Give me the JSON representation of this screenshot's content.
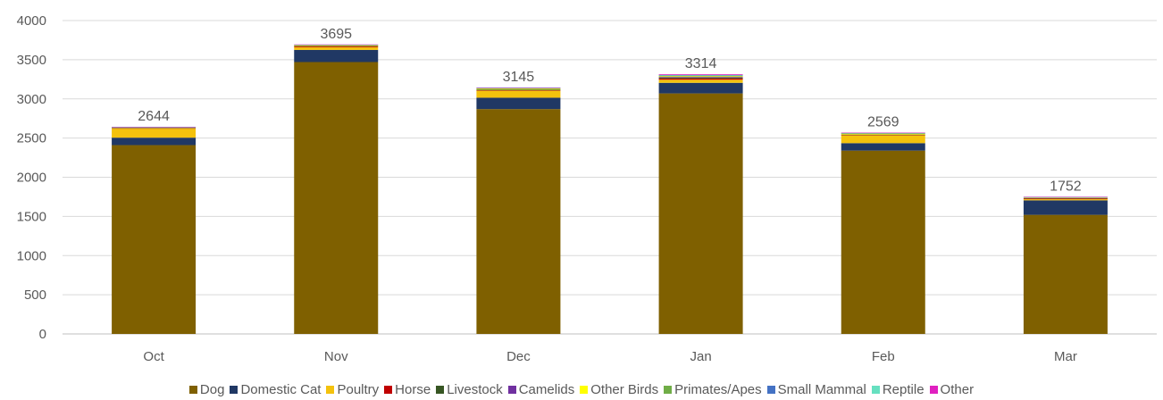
{
  "chart_data": {
    "type": "bar",
    "stacked": true,
    "categories": [
      "Oct",
      "Nov",
      "Dec",
      "Jan",
      "Feb",
      "Mar"
    ],
    "totals": [
      2644,
      3695,
      3145,
      3314,
      2569,
      1752
    ],
    "ylim": [
      0,
      4000
    ],
    "yticks": [
      0,
      500,
      1000,
      1500,
      2000,
      2500,
      3000,
      3500,
      4000
    ],
    "grid": true,
    "legend_position": "bottom",
    "series": [
      {
        "name": "Dog",
        "color": "#7f6000",
        "values": [
          2410,
          3470,
          2870,
          3070,
          2340,
          1520
        ]
      },
      {
        "name": "Domestic Cat",
        "color": "#203864",
        "values": [
          95,
          155,
          145,
          135,
          95,
          185
        ]
      },
      {
        "name": "Poultry",
        "color": "#f4c20d",
        "values": [
          115,
          35,
          90,
          40,
          100,
          15
        ]
      },
      {
        "name": "Horse",
        "color": "#c00000",
        "values": [
          5,
          10,
          5,
          15,
          5,
          10
        ]
      },
      {
        "name": "Livestock",
        "color": "#375623",
        "values": [
          5,
          5,
          10,
          10,
          5,
          5
        ]
      },
      {
        "name": "Camelids",
        "color": "#7030a0",
        "values": [
          0,
          0,
          0,
          10,
          0,
          0
        ]
      },
      {
        "name": "Other Birds",
        "color": "#ffff00",
        "values": [
          5,
          10,
          10,
          10,
          10,
          5
        ]
      },
      {
        "name": "Primates/Apes",
        "color": "#70ad47",
        "values": [
          0,
          0,
          5,
          5,
          5,
          0
        ]
      },
      {
        "name": "Small Mammal",
        "color": "#4472c4",
        "values": [
          5,
          5,
          5,
          5,
          5,
          5
        ]
      },
      {
        "name": "Reptile",
        "color": "#66e0c0",
        "values": [
          2,
          2,
          2,
          5,
          2,
          2
        ]
      },
      {
        "name": "Other",
        "color": "#e020c0",
        "values": [
          2,
          3,
          3,
          9,
          2,
          5
        ]
      }
    ]
  }
}
